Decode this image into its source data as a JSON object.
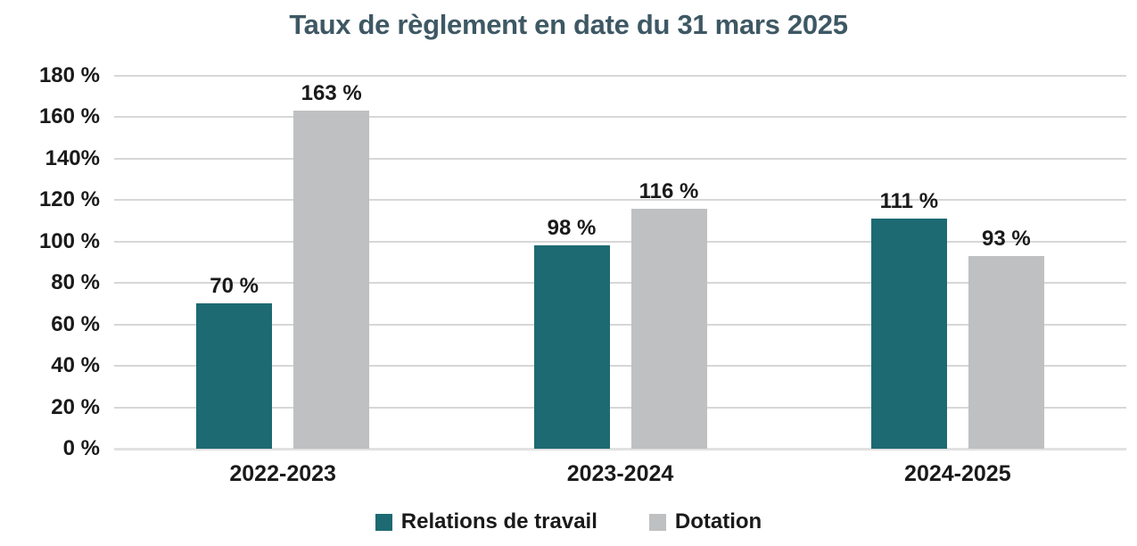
{
  "title": "Taux de règlement en date du 31 mars 2025",
  "colors": {
    "title_text": "#3e5864",
    "axis_text": "#1a1a1a",
    "gridline": "#d7d7d7",
    "series_relations": "#1d6a72",
    "series_dotation": "#bfc0c2"
  },
  "chart_data": {
    "type": "bar",
    "title": "Taux de règlement en date du 31 mars 2025",
    "categories": [
      "2022-2023",
      "2023-2024",
      "2024-2025"
    ],
    "series": [
      {
        "name": "Relations de travail",
        "color": "#1d6a72",
        "values": [
          70,
          98,
          111
        ],
        "value_labels": [
          "70 %",
          "98 %",
          "111 %"
        ]
      },
      {
        "name": "Dotation",
        "color": "#bfc0c2",
        "values": [
          163,
          116,
          93
        ],
        "value_labels": [
          "163 %",
          "116 %",
          "93 %"
        ]
      }
    ],
    "xlabel": "",
    "ylabel": "",
    "ylim": [
      0,
      180
    ],
    "ytick_step": 20,
    "ytick_labels": [
      "180 %",
      "160 %",
      "140%",
      "120 %",
      "100 %",
      "80 %",
      "60 %",
      "40 %",
      "20 %",
      "0 %"
    ],
    "grid": true,
    "legend_position": "bottom"
  }
}
